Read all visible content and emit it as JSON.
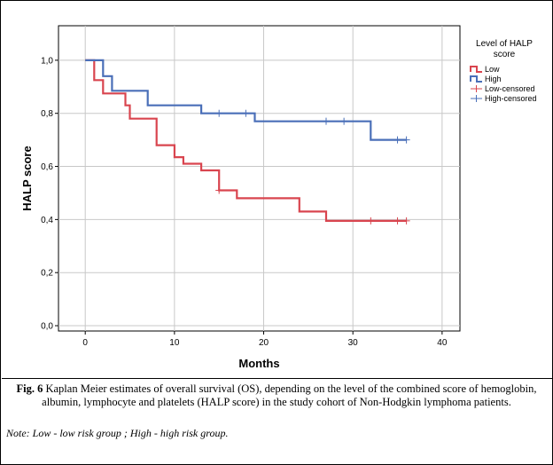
{
  "chart_data": {
    "type": "line",
    "step": true,
    "xlabel": "Months",
    "ylabel": "HALP score",
    "xlim": [
      -3,
      42
    ],
    "ylim": [
      -0.02,
      1.13
    ],
    "xticks": [
      "0",
      "10",
      "20",
      "30",
      "40"
    ],
    "xtick_values": [
      0,
      10,
      20,
      30,
      40
    ],
    "yticks": [
      "0,0",
      "0,2",
      "0,4",
      "0,6",
      "0,8",
      "1,0"
    ],
    "ytick_values": [
      0.0,
      0.2,
      0.4,
      0.6,
      0.8,
      1.0
    ],
    "grid": true,
    "legend": {
      "title": "Level of HALP score",
      "title_lines": [
        "Level of HALP",
        "score"
      ],
      "placement": "right",
      "entries": [
        "Low",
        "High",
        "Low-censored",
        "High-censored"
      ]
    },
    "series": [
      {
        "name": "Low",
        "color": "#d9454f",
        "x": [
          0,
          1,
          1,
          2,
          2,
          3.5,
          3.5,
          4.5,
          4.5,
          5,
          5,
          8,
          8,
          10,
          10,
          11,
          11,
          13,
          13,
          15,
          15,
          17,
          17,
          24,
          24,
          27,
          27,
          36
        ],
        "y": [
          1.0,
          1.0,
          0.925,
          0.925,
          0.875,
          0.875,
          0.875,
          0.875,
          0.83,
          0.83,
          0.78,
          0.78,
          0.68,
          0.68,
          0.635,
          0.635,
          0.61,
          0.61,
          0.585,
          0.585,
          0.51,
          0.51,
          0.48,
          0.48,
          0.43,
          0.43,
          0.395,
          0.395
        ],
        "censored": [
          [
            15,
            0.51
          ],
          [
            32,
            0.395
          ],
          [
            35,
            0.395
          ],
          [
            36,
            0.395
          ]
        ]
      },
      {
        "name": "High",
        "color": "#4a6fb8",
        "x": [
          0,
          2,
          2,
          3,
          3,
          7,
          7,
          13,
          13,
          19,
          19,
          32,
          32,
          36
        ],
        "y": [
          1.0,
          1.0,
          0.94,
          0.94,
          0.885,
          0.885,
          0.83,
          0.83,
          0.8,
          0.8,
          0.77,
          0.77,
          0.7,
          0.7
        ],
        "censored": [
          [
            15,
            0.8
          ],
          [
            18,
            0.8
          ],
          [
            27,
            0.77
          ],
          [
            29,
            0.77
          ],
          [
            35,
            0.7
          ],
          [
            36,
            0.7
          ]
        ]
      }
    ]
  },
  "caption": {
    "fig_label": "Fig. 6",
    "text": " Kaplan Meier estimates of overall survival (OS), depending on the level of the combined score of hemoglobin, albumin, lymphocyte and platelets (HALP score) in the study cohort of Non-Hodgkin lymphoma patients."
  },
  "note": "Note: Low - low risk group ; High - high risk group."
}
